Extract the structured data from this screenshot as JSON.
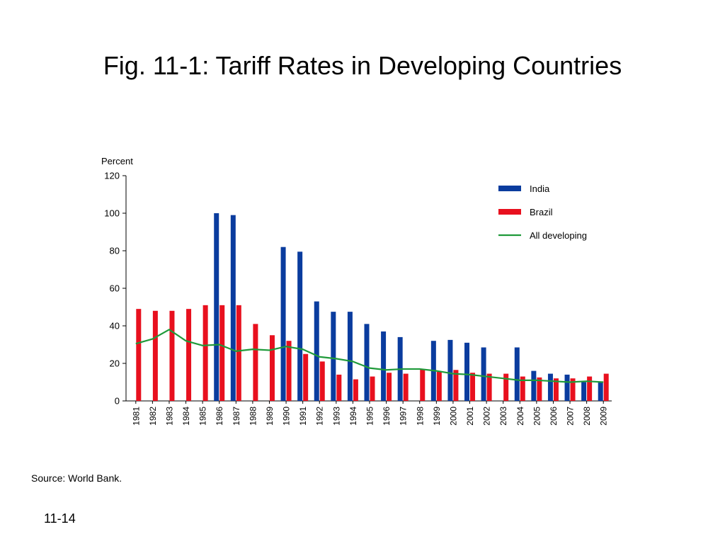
{
  "slide": {
    "title": "Fig. 11-1: Tariff Rates in Developing Countries",
    "source": "Source: World Bank.",
    "page_number": "11-14"
  },
  "chart_data": {
    "type": "bar",
    "ylabel": "Percent",
    "ylim": [
      0,
      120
    ],
    "yticks": [
      0,
      20,
      40,
      60,
      80,
      100,
      120
    ],
    "categories": [
      "1981",
      "1982",
      "1983",
      "1984",
      "1985",
      "1986",
      "1987",
      "1988",
      "1989",
      "1990",
      "1991",
      "1992",
      "1993",
      "1994",
      "1995",
      "1996",
      "1997",
      "1998",
      "1999",
      "2000",
      "2001",
      "2002",
      "2003",
      "2004",
      "2005",
      "2006",
      "2007",
      "2008",
      "2009"
    ],
    "series": [
      {
        "name": "India",
        "type": "bar",
        "color": "#0a3c9e",
        "values": [
          null,
          null,
          null,
          null,
          null,
          100,
          99,
          null,
          null,
          82,
          79.5,
          53,
          47.5,
          47.5,
          41,
          37,
          34,
          null,
          32,
          32.5,
          31,
          28.5,
          null,
          28.5,
          16,
          14.5,
          14,
          10,
          10
        ]
      },
      {
        "name": "Brazil",
        "type": "bar",
        "color": "#e8101e",
        "values": [
          49,
          48,
          48,
          49,
          51,
          51,
          51,
          41,
          35,
          32,
          25,
          21,
          14,
          11.5,
          13,
          15,
          14.5,
          17,
          15.5,
          16.5,
          15,
          14.5,
          14.5,
          13,
          12.5,
          12,
          12,
          13,
          14.5
        ]
      },
      {
        "name": "All developing",
        "type": "line",
        "color": "#1f9a3a",
        "values": [
          30.5,
          33,
          38,
          32,
          29.5,
          30,
          26.5,
          27.5,
          27,
          29,
          27.5,
          23.5,
          22.5,
          21,
          17.5,
          16.5,
          17,
          17,
          16,
          14.5,
          14,
          13,
          12,
          11,
          11,
          10.5,
          10,
          10.5,
          10
        ]
      }
    ],
    "legend": "top-right",
    "grid": false
  }
}
